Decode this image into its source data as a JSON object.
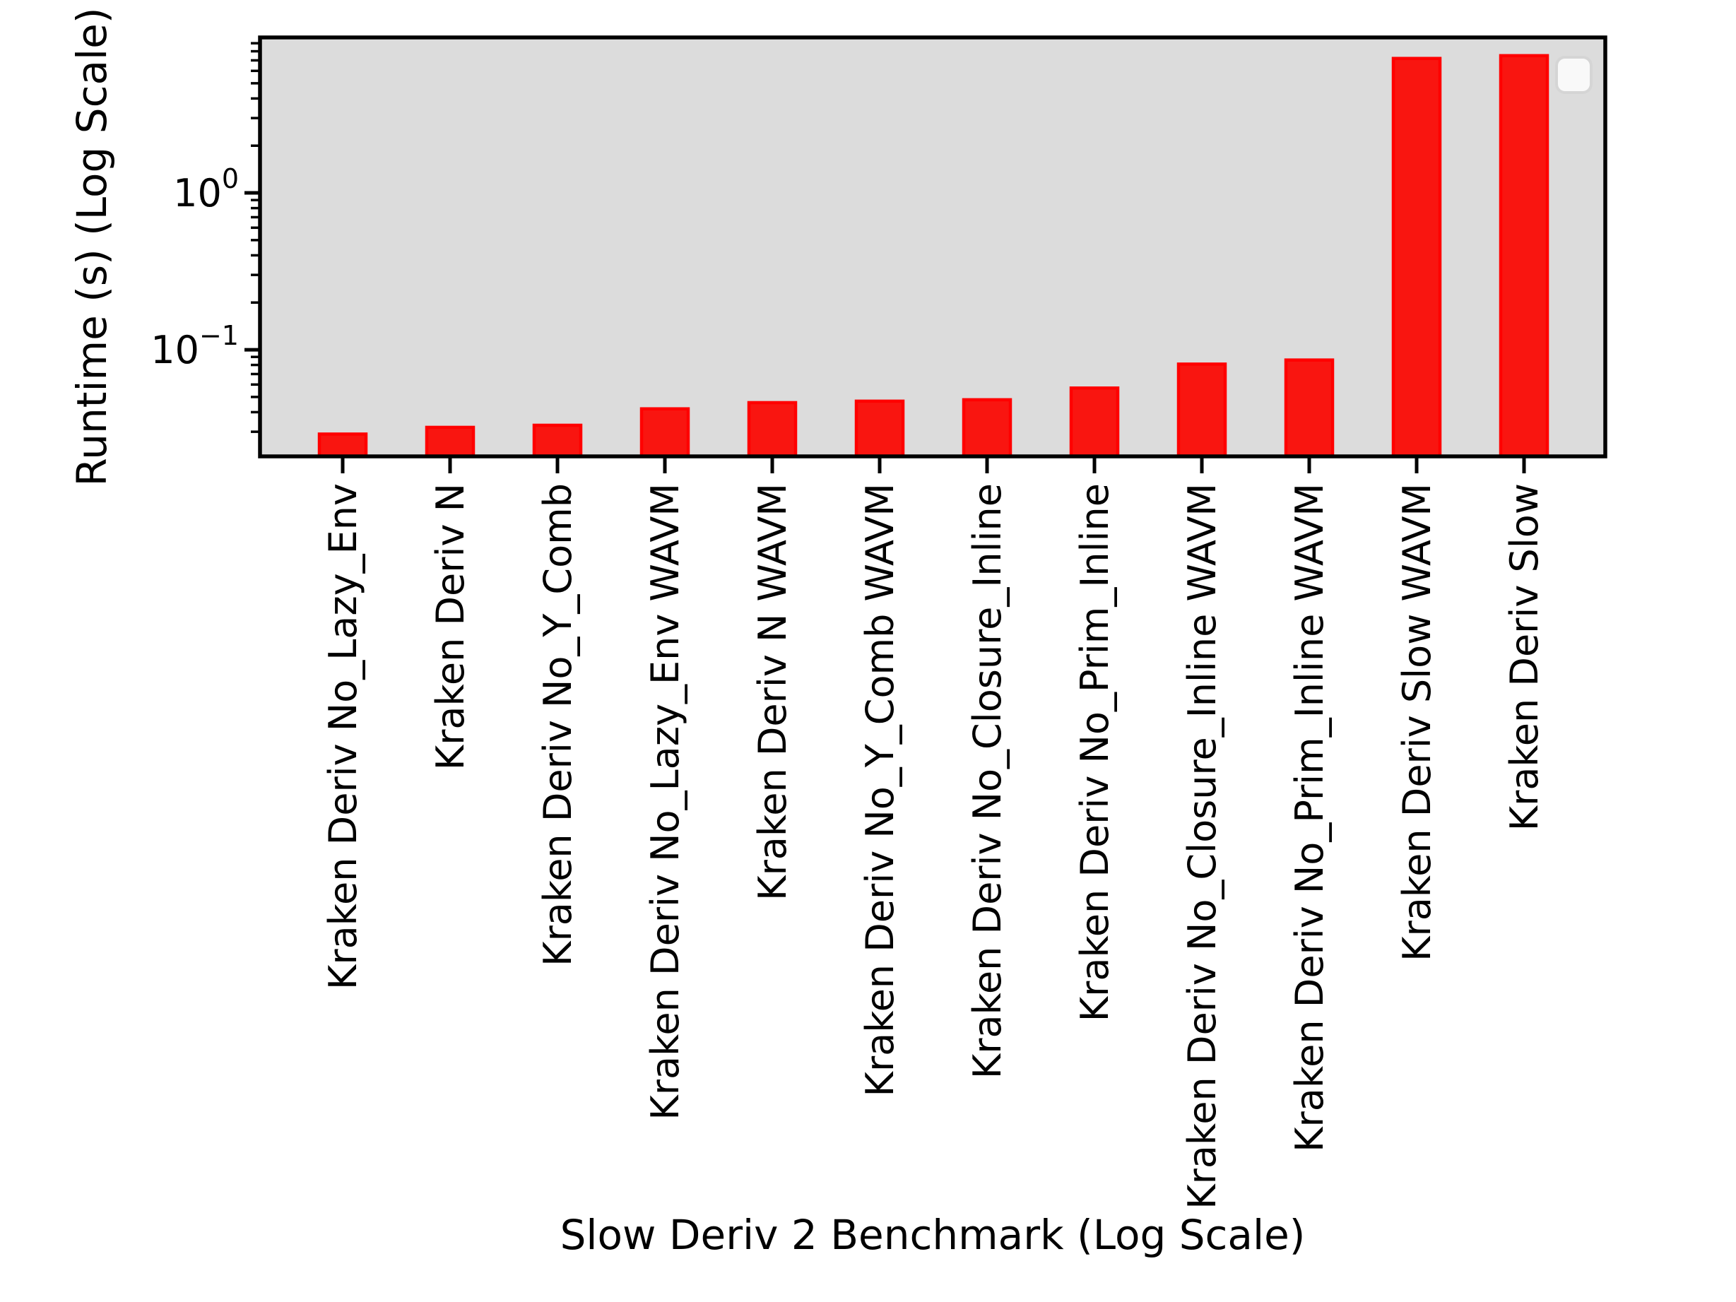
{
  "figure": {
    "background": "#ffffff",
    "plot_background": "#dcdcdc",
    "spine_color": "#000000",
    "tick_color": "#000000",
    "text_color": "#000000"
  },
  "chart_data": {
    "type": "bar",
    "title": "",
    "xlabel": "Slow Deriv 2 Benchmark (Log Scale)",
    "ylabel": "Runtime (s) (Log Scale)",
    "categories": [
      "Kraken Deriv No_Lazy_Env",
      "Kraken Deriv N",
      "Kraken Deriv No_Y_Comb",
      "Kraken Deriv No_Lazy_Env WAVM",
      "Kraken Deriv N WAVM",
      "Kraken Deriv No_Y_Comb WAVM",
      "Kraken Deriv No_Closure_Inline",
      "Kraken Deriv No_Prim_Inline",
      "Kraken Deriv No_Closure_Inline WAVM",
      "Kraken Deriv No_Prim_Inline WAVM",
      "Kraken Deriv Slow WAVM",
      "Kraken Deriv Slow"
    ],
    "values": [
      0.029,
      0.032,
      0.033,
      0.042,
      0.046,
      0.047,
      0.048,
      0.057,
      0.081,
      0.086,
      7.2,
      7.5
    ],
    "series_name": "Runtime (s)",
    "bar_color": "#f91510",
    "bar_edge_color": "#ff0000",
    "y_scale": "log",
    "ylim": [
      0.0209,
      9.8
    ],
    "y_major_ticks": [
      {
        "value": 1,
        "base": "10",
        "exponent": "0"
      },
      {
        "value": 0.1,
        "base": "10",
        "exponent": "−1"
      }
    ],
    "y_minor_tick_multipliers": [
      2,
      3,
      4,
      5,
      6,
      7,
      8,
      9
    ],
    "y_minor_tick_decades": [
      -2,
      -1,
      0,
      1
    ],
    "grid": false,
    "legend": {
      "visible": true,
      "position": "upper right",
      "items": []
    }
  }
}
